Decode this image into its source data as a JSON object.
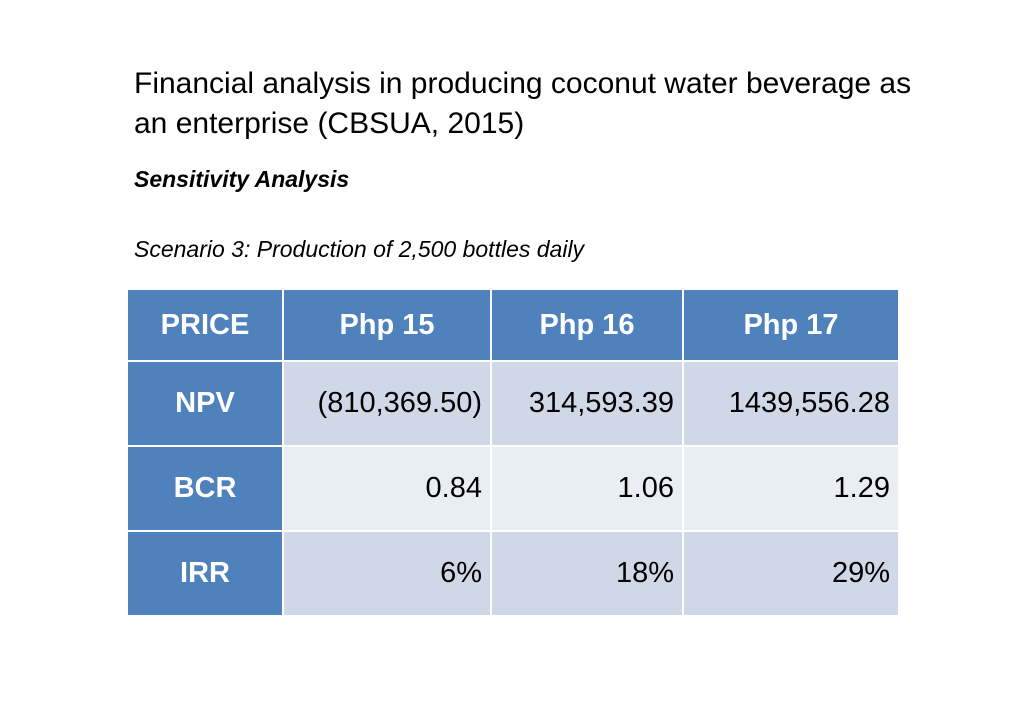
{
  "title": "Financial analysis in producing coconut water beverage as an enterprise (CBSUA, 2015)",
  "subtitle": "Sensitivity Analysis",
  "scenario": "Scenario 3:  Production of 2,500 bottles daily",
  "table": {
    "headers": [
      "PRICE",
      "Php 15",
      "Php 16",
      "Php 17"
    ],
    "rows": [
      {
        "label": "NPV",
        "values": [
          "(810,369.50)",
          "314,593.39",
          "1439,556.28"
        ]
      },
      {
        "label": "BCR",
        "values": [
          "0.84",
          "1.06",
          "1.29"
        ]
      },
      {
        "label": "IRR",
        "values": [
          "6%",
          "18%",
          "29%"
        ]
      }
    ]
  },
  "colors": {
    "header_fill": "#4f81bd",
    "row_fill_dark": "#d0d8e8",
    "row_fill_light": "#e9edf4"
  }
}
